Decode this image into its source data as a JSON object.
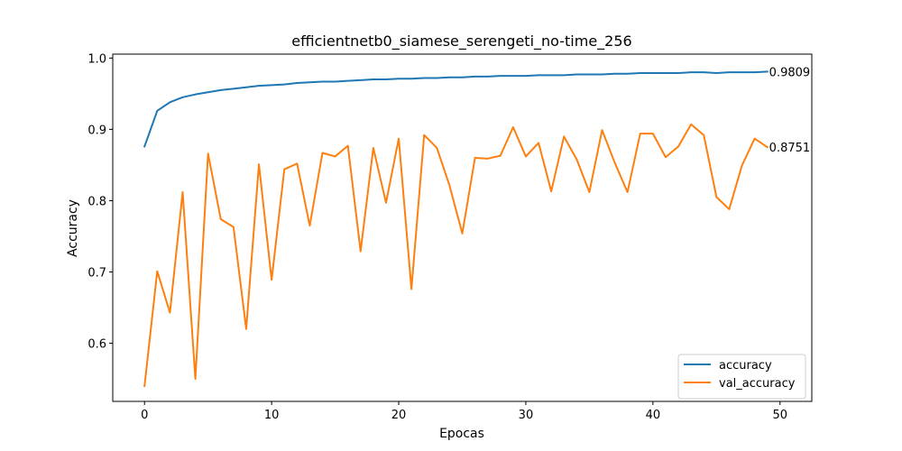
{
  "chart_data": {
    "type": "line",
    "title": "efficientnetb0_siamese_serengeti_no-time_256",
    "xlabel": "Epocas",
    "ylabel": "Accuracy",
    "xlim": [
      -2.5,
      52.5
    ],
    "ylim": [
      0.5185,
      1.0055
    ],
    "xticks": [
      0,
      10,
      20,
      30,
      40,
      50
    ],
    "yticks": [
      0.6,
      0.7,
      0.8,
      0.9,
      1.0
    ],
    "ytick_labels": [
      "0.6",
      "0.7",
      "0.8",
      "0.9",
      "1.0"
    ],
    "legend_position": "lower-right",
    "grid": false,
    "series": [
      {
        "name": "accuracy",
        "color": "#1f77b4",
        "end_label": "0.9809",
        "x": [
          0,
          1,
          2,
          3,
          4,
          5,
          6,
          7,
          8,
          9,
          10,
          11,
          12,
          13,
          14,
          15,
          16,
          17,
          18,
          19,
          20,
          21,
          22,
          23,
          24,
          25,
          26,
          27,
          28,
          29,
          30,
          31,
          32,
          33,
          34,
          35,
          36,
          37,
          38,
          39,
          40,
          41,
          42,
          43,
          44,
          45,
          46,
          47,
          48,
          49
        ],
        "values": [
          0.876,
          0.926,
          0.938,
          0.945,
          0.949,
          0.952,
          0.955,
          0.957,
          0.959,
          0.961,
          0.962,
          0.963,
          0.965,
          0.966,
          0.967,
          0.967,
          0.968,
          0.969,
          0.97,
          0.97,
          0.971,
          0.971,
          0.972,
          0.972,
          0.973,
          0.973,
          0.974,
          0.974,
          0.975,
          0.975,
          0.975,
          0.976,
          0.976,
          0.976,
          0.977,
          0.977,
          0.977,
          0.978,
          0.978,
          0.979,
          0.979,
          0.979,
          0.979,
          0.98,
          0.98,
          0.979,
          0.98,
          0.98,
          0.98,
          0.9809
        ]
      },
      {
        "name": "val_accuracy",
        "color": "#ff7f0e",
        "end_label": "0.8751",
        "x": [
          0,
          1,
          2,
          3,
          4,
          5,
          6,
          7,
          8,
          9,
          10,
          11,
          12,
          13,
          14,
          15,
          16,
          17,
          18,
          19,
          20,
          21,
          22,
          23,
          24,
          25,
          26,
          27,
          28,
          29,
          30,
          31,
          32,
          33,
          34,
          35,
          36,
          37,
          38,
          39,
          40,
          41,
          42,
          43,
          44,
          45,
          46,
          47,
          48,
          49
        ],
        "values": [
          0.54,
          0.701,
          0.643,
          0.812,
          0.55,
          0.866,
          0.774,
          0.763,
          0.62,
          0.851,
          0.689,
          0.844,
          0.852,
          0.765,
          0.867,
          0.862,
          0.877,
          0.729,
          0.874,
          0.797,
          0.887,
          0.676,
          0.892,
          0.874,
          0.821,
          0.754,
          0.86,
          0.859,
          0.863,
          0.903,
          0.862,
          0.881,
          0.813,
          0.89,
          0.858,
          0.812,
          0.899,
          0.853,
          0.812,
          0.894,
          0.894,
          0.861,
          0.876,
          0.907,
          0.892,
          0.805,
          0.788,
          0.849,
          0.887,
          0.8751
        ]
      }
    ]
  }
}
